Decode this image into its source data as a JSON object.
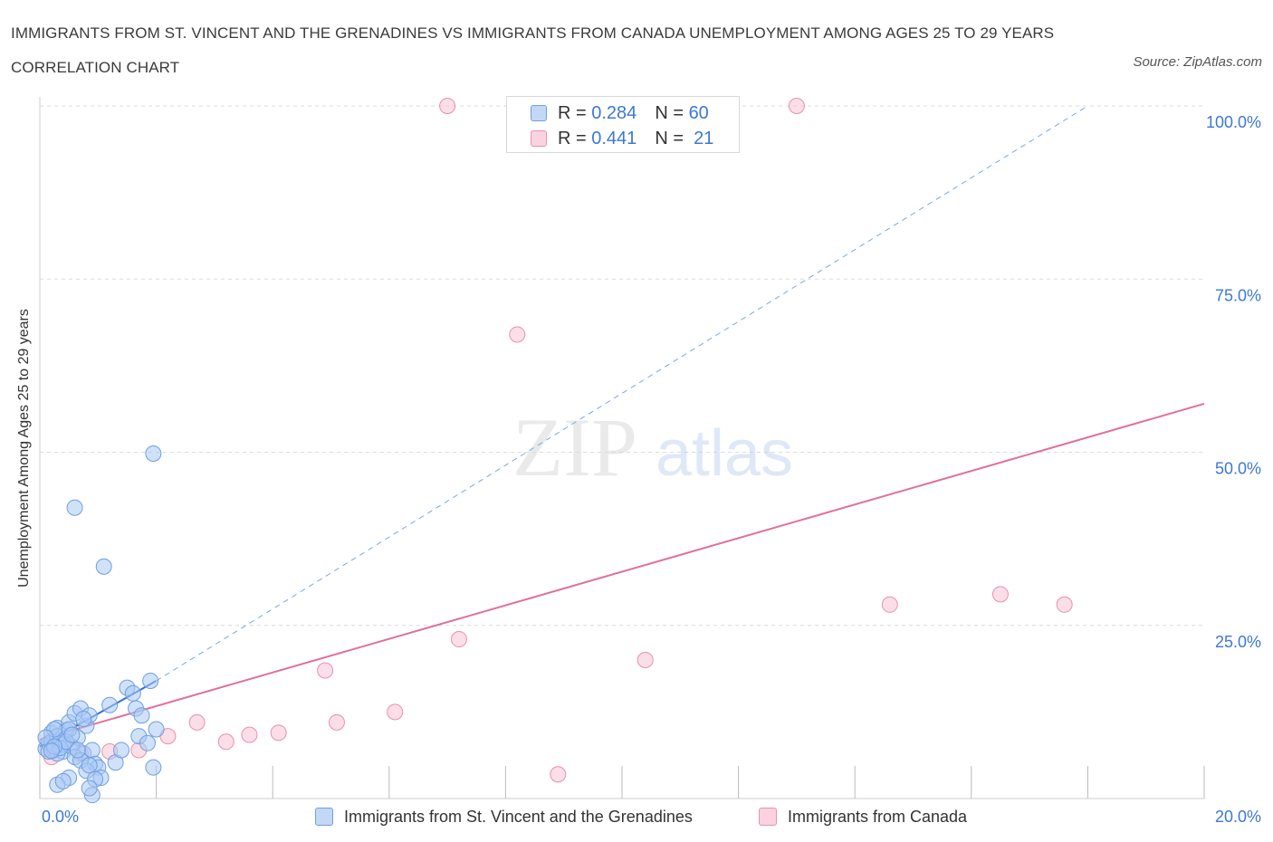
{
  "title": "IMMIGRANTS FROM ST. VINCENT AND THE GRENADINES VS IMMIGRANTS FROM CANADA UNEMPLOYMENT AMONG AGES 25 TO 29 YEARS CORRELATION CHART",
  "source": "Source: ZipAtlas.com",
  "watermark": {
    "zip": "ZIP",
    "atlas": "atlas"
  },
  "legend": {
    "rows": [
      {
        "r_label": "R =",
        "r_value": "0.284",
        "n_label": "N =",
        "n_value": "60",
        "color": "#aac8f5"
      },
      {
        "r_label": "R =",
        "r_value": "0.441",
        "n_label": "N =",
        "n_value": "21",
        "color": "#f7bcd0"
      }
    ]
  },
  "colors": {
    "blue_fill": "#aac8f5",
    "blue_stroke": "#6f9fe0",
    "blue_line": "#2f6fcf",
    "pink_fill": "#f7c3d3",
    "pink_stroke": "#e891ad",
    "pink_line": "#e0709a",
    "tick_label": "#3c78d8",
    "grid": "#dcdcdc"
  },
  "chart_data": {
    "type": "scatter",
    "title": "IMMIGRANTS FROM ST. VINCENT AND THE GRENADINES VS IMMIGRANTS FROM CANADA UNEMPLOYMENT AMONG AGES 25 TO 29 YEARS CORRELATION CHART",
    "xlabel": "",
    "ylabel": "Unemployment Among Ages 25 to 29 years",
    "xlim": [
      0,
      20
    ],
    "ylim": [
      0,
      100
    ],
    "x_tick_labels": [
      "0.0%",
      "20.0%"
    ],
    "y_tick_labels": [
      "25.0%",
      "50.0%",
      "75.0%",
      "100.0%"
    ],
    "y_ticks": [
      25,
      50,
      75,
      100
    ],
    "series": [
      {
        "name": "Immigrants from St. Vincent and the Grenadines",
        "R": 0.284,
        "N": 60,
        "points": [
          [
            0.1,
            7.2
          ],
          [
            0.15,
            8.0
          ],
          [
            0.2,
            9.5
          ],
          [
            0.25,
            7.0
          ],
          [
            0.3,
            10.2
          ],
          [
            0.35,
            8.5
          ],
          [
            0.4,
            6.8
          ],
          [
            0.45,
            9.8
          ],
          [
            0.5,
            11.0
          ],
          [
            0.55,
            7.5
          ],
          [
            0.6,
            12.3
          ],
          [
            0.65,
            8.8
          ],
          [
            0.7,
            13.0
          ],
          [
            0.75,
            6.5
          ],
          [
            0.8,
            10.5
          ],
          [
            0.85,
            12.0
          ],
          [
            0.9,
            7.0
          ],
          [
            0.95,
            5.0
          ],
          [
            1.0,
            4.5
          ],
          [
            1.05,
            3.0
          ],
          [
            0.2,
            8.2
          ],
          [
            0.3,
            9.0
          ],
          [
            0.4,
            7.8
          ],
          [
            0.5,
            10.0
          ],
          [
            0.6,
            6.0
          ],
          [
            0.7,
            5.5
          ],
          [
            0.8,
            4.0
          ],
          [
            0.3,
            6.5
          ],
          [
            0.25,
            10.0
          ],
          [
            0.15,
            6.8
          ],
          [
            0.1,
            8.8
          ],
          [
            0.35,
            7.3
          ],
          [
            0.45,
            8.2
          ],
          [
            0.55,
            9.2
          ],
          [
            0.65,
            7.0
          ],
          [
            0.75,
            11.5
          ],
          [
            0.85,
            4.8
          ],
          [
            0.95,
            2.8
          ],
          [
            0.5,
            3.0
          ],
          [
            0.3,
            2.0
          ],
          [
            0.4,
            2.5
          ],
          [
            0.9,
            0.5
          ],
          [
            0.85,
            1.5
          ],
          [
            1.2,
            13.5
          ],
          [
            1.3,
            5.2
          ],
          [
            1.4,
            7.0
          ],
          [
            1.5,
            16.0
          ],
          [
            1.6,
            15.2
          ],
          [
            1.65,
            13.0
          ],
          [
            1.75,
            12.0
          ],
          [
            1.7,
            9.0
          ],
          [
            1.85,
            8.0
          ],
          [
            1.9,
            17.0
          ],
          [
            2.0,
            10.0
          ],
          [
            1.95,
            4.5
          ],
          [
            0.6,
            42.0
          ],
          [
            1.1,
            33.5
          ],
          [
            1.95,
            49.8
          ],
          [
            0.25,
            7.5
          ],
          [
            0.2,
            6.9
          ]
        ],
        "trend": {
          "x0": 0,
          "y0": 7.5,
          "x1": 2.0,
          "y1": 17.0,
          "extended_to": [
            18.0,
            100.0
          ]
        }
      },
      {
        "name": "Immigrants from Canada",
        "R": 0.441,
        "N": 21,
        "points": [
          [
            0.2,
            6.0
          ],
          [
            0.7,
            6.5
          ],
          [
            1.2,
            6.8
          ],
          [
            1.7,
            7.0
          ],
          [
            2.2,
            9.0
          ],
          [
            2.7,
            11.0
          ],
          [
            3.2,
            8.2
          ],
          [
            3.6,
            9.2
          ],
          [
            4.1,
            9.5
          ],
          [
            4.9,
            18.5
          ],
          [
            5.1,
            11.0
          ],
          [
            6.1,
            12.5
          ],
          [
            7.2,
            23.0
          ],
          [
            8.2,
            67.0
          ],
          [
            8.9,
            3.5
          ],
          [
            10.4,
            20.0
          ],
          [
            14.6,
            28.0
          ],
          [
            16.5,
            29.5
          ],
          [
            17.6,
            28.0
          ],
          [
            7.0,
            100.0
          ],
          [
            13.0,
            100.0
          ]
        ],
        "trend": {
          "x0": 0,
          "y0": 8.5,
          "x1": 20.0,
          "y1": 57.0
        }
      }
    ]
  }
}
